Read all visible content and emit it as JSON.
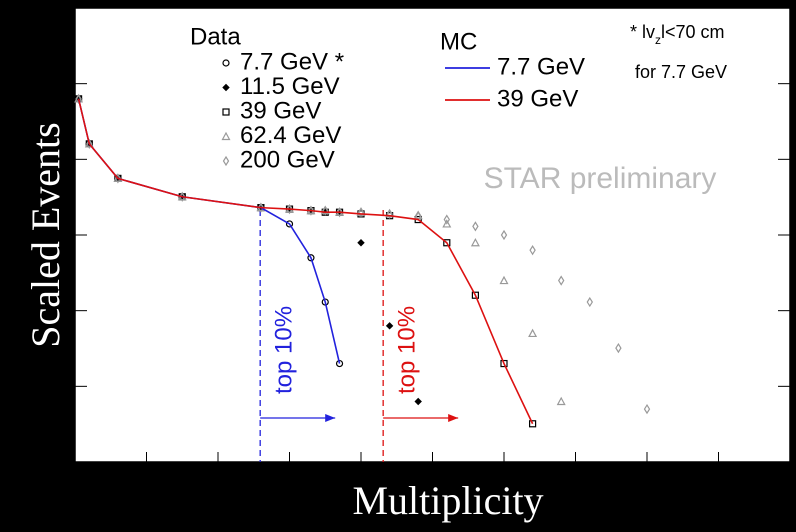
{
  "chart_data": {
    "type": "scatter",
    "y_label": "Scaled Events",
    "x_label": "Multiplicity",
    "log_y": true,
    "xlim": [
      0,
      100
    ],
    "ylim": [
      1e-06,
      1
    ],
    "xticks": [
      0,
      10,
      20,
      30,
      40,
      50,
      60,
      70,
      80,
      90,
      100
    ],
    "yticks": [
      1e-06,
      1e-05,
      0.0001,
      0.001,
      0.01,
      0.1,
      1
    ],
    "legend_titles": [
      "Data",
      "MC"
    ],
    "x": [
      0.5,
      2,
      6,
      15,
      26,
      30,
      33,
      35,
      37,
      40,
      44,
      48,
      52,
      56,
      60,
      64,
      68,
      72,
      76,
      80
    ],
    "series": [
      {
        "name": "7.7 GeV *",
        "marker": "circle",
        "color": "#000000",
        "values": [
          0.063,
          0.016,
          0.0056,
          0.0032,
          0.0023,
          0.0014,
          0.0005,
          0.00013,
          2e-05,
          null,
          null,
          null,
          null,
          null,
          null,
          null,
          null,
          null,
          null,
          null
        ]
      },
      {
        "name": "11.5 GeV",
        "marker": "cross",
        "color": "#000000",
        "values": [
          0.063,
          0.016,
          0.0056,
          0.0032,
          0.0023,
          0.0022,
          0.0021,
          0.002,
          0.002,
          0.00079,
          6.3e-05,
          6.3e-06,
          null,
          null,
          null,
          null,
          null,
          null,
          null,
          null
        ]
      },
      {
        "name": "39 GeV",
        "marker": "square",
        "color": "#000000",
        "values": [
          0.063,
          0.016,
          0.0056,
          0.0032,
          0.0023,
          0.0022,
          0.0021,
          0.002,
          0.002,
          0.0019,
          0.0018,
          0.0016,
          0.00079,
          0.00016,
          2e-05,
          3.2e-06,
          null,
          null,
          null,
          null
        ]
      },
      {
        "name": "62.4 GeV",
        "marker": "triangle",
        "color": "#999999",
        "values": [
          0.063,
          0.016,
          0.0056,
          0.0032,
          0.0023,
          0.0022,
          0.0021,
          0.0021,
          0.002,
          0.002,
          0.0019,
          0.0018,
          0.0014,
          0.00079,
          0.00025,
          5e-05,
          6.3e-06,
          null,
          null,
          null
        ]
      },
      {
        "name": "200 GeV",
        "marker": "diamond",
        "color": "#999999",
        "values": [
          0.063,
          0.016,
          0.0056,
          0.0032,
          0.0023,
          0.0022,
          0.0021,
          0.0021,
          0.002,
          0.002,
          0.0019,
          0.0018,
          0.0016,
          0.0013,
          0.001,
          0.00063,
          0.00025,
          0.00013,
          3.2e-05,
          5e-06
        ]
      },
      {
        "name": "7.7 GeV",
        "marker": "line",
        "color": "#2222dd",
        "values": [
          0.063,
          0.016,
          0.0056,
          0.0032,
          0.0023,
          0.0014,
          0.0005,
          0.00013,
          2e-05,
          null,
          null,
          null,
          null,
          null,
          null,
          null,
          null,
          null,
          null,
          null
        ]
      },
      {
        "name": "39 GeV",
        "marker": "line",
        "color": "#dd1111",
        "values": [
          0.063,
          0.016,
          0.0056,
          0.0032,
          0.0023,
          0.0022,
          0.0021,
          0.002,
          0.002,
          0.0019,
          0.0018,
          0.0016,
          0.00079,
          0.00016,
          2e-05,
          3.2e-06,
          null,
          null,
          null,
          null
        ]
      }
    ],
    "cuts": [
      {
        "x": 25.9,
        "label": "top 10%",
        "color": "#2222dd"
      },
      {
        "x": 43.1,
        "label": "top 10%",
        "color": "#dd1111"
      }
    ],
    "note": {
      "prefix": "* lv",
      "subscript": "z",
      "suffix": "l<70 cm",
      "line2": "for 7.7 GeV"
    },
    "watermark": "STAR preliminary"
  }
}
